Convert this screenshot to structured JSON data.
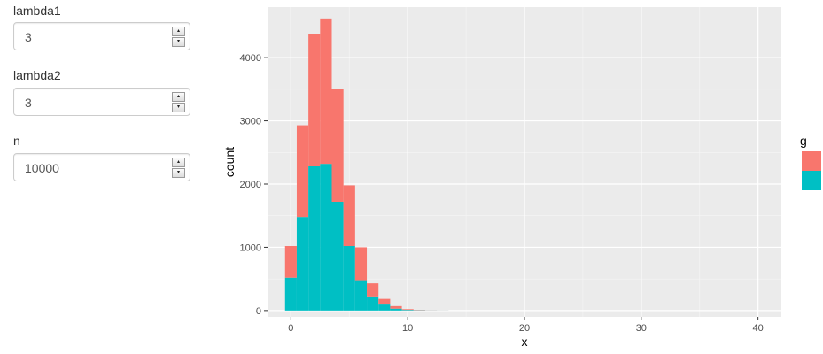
{
  "inputs": [
    {
      "label": "lambda1",
      "value": "3"
    },
    {
      "label": "lambda2",
      "value": "3"
    },
    {
      "label": "n",
      "value": "10000"
    }
  ],
  "spinner": {
    "up": "▴",
    "down": "▾"
  },
  "chart_data": {
    "type": "bar",
    "stacked": true,
    "xlabel": "x",
    "ylabel": "count",
    "xlim": [
      -2,
      42
    ],
    "ylim": [
      -100,
      4800
    ],
    "x_ticks": [
      0,
      10,
      20,
      30,
      40
    ],
    "y_ticks": [
      0,
      1000,
      2000,
      3000,
      4000
    ],
    "grid": true,
    "bin_width": 1,
    "legend": {
      "title": "g",
      "placement": "right"
    },
    "x": [
      0,
      1,
      2,
      3,
      4,
      5,
      6,
      7,
      8,
      9,
      10,
      11,
      12,
      13
    ],
    "series": [
      {
        "color": "#F8766D",
        "values": [
          500,
          1450,
          2100,
          2300,
          1780,
          960,
          520,
          220,
          90,
          40,
          12,
          5,
          2,
          1
        ]
      },
      {
        "color": "#00BFC4",
        "values": [
          520,
          1480,
          2280,
          2320,
          1720,
          1020,
          480,
          210,
          95,
          30,
          10,
          4,
          2,
          1
        ]
      }
    ]
  }
}
